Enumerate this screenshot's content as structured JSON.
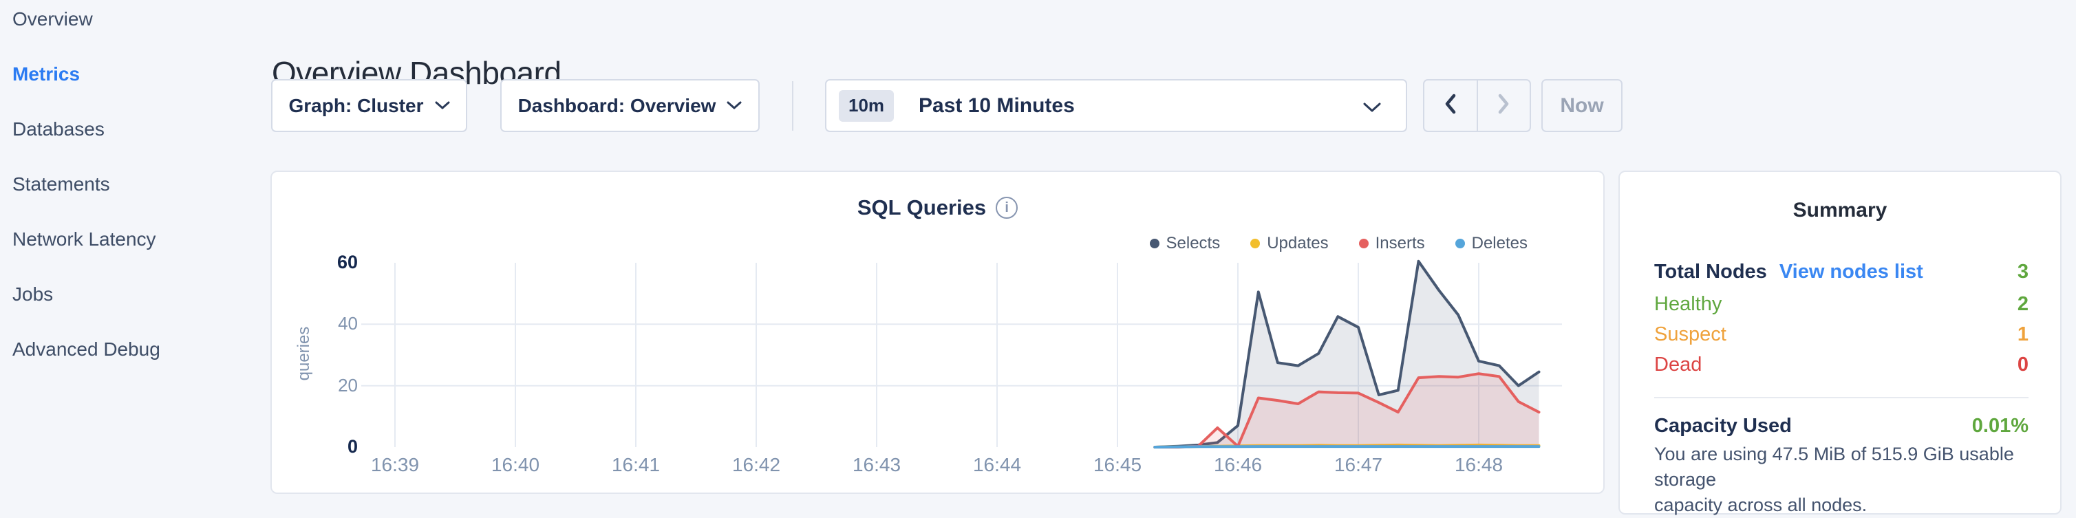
{
  "sidebar": {
    "items": [
      {
        "label": "Overview",
        "active": false
      },
      {
        "label": "Metrics",
        "active": true
      },
      {
        "label": "Databases",
        "active": false
      },
      {
        "label": "Statements",
        "active": false
      },
      {
        "label": "Network Latency",
        "active": false
      },
      {
        "label": "Jobs",
        "active": false
      },
      {
        "label": "Advanced Debug",
        "active": false
      }
    ]
  },
  "header": {
    "title": "Overview Dashboard"
  },
  "controls": {
    "graph_dropdown_label": "Graph: Cluster",
    "dashboard_dropdown_label": "Dashboard: Overview",
    "time_picker": {
      "badge": "10m",
      "label": "Past 10 Minutes"
    },
    "now_button_label": "Now"
  },
  "chart_panel": {
    "info_glyph": "i"
  },
  "chart_data": {
    "type": "line",
    "title": "SQL Queries",
    "ylabel": "queries",
    "xlabel": "",
    "x_unit": "minutes after 16:39",
    "x_tick_labels": [
      "16:39",
      "16:40",
      "16:41",
      "16:42",
      "16:43",
      "16:44",
      "16:45",
      "16:46",
      "16:47",
      "16:48"
    ],
    "ylim": [
      0,
      60
    ],
    "y_ticks": [
      0,
      20,
      40,
      60
    ],
    "grid": true,
    "legend_position": "top-right",
    "series": [
      {
        "name": "Selects",
        "color": "#475872",
        "fill": "rgba(71,88,114,0.13)",
        "points": [
          [
            6.31,
            0
          ],
          [
            6.5,
            0.3
          ],
          [
            6.67,
            0.7
          ],
          [
            6.83,
            1.5
          ],
          [
            7,
            7
          ],
          [
            7.17,
            50.5
          ],
          [
            7.33,
            27.5
          ],
          [
            7.5,
            26.5
          ],
          [
            7.67,
            30.5
          ],
          [
            7.83,
            42.5
          ],
          [
            8,
            39
          ],
          [
            8.17,
            17
          ],
          [
            8.33,
            18.5
          ],
          [
            8.5,
            60.5
          ],
          [
            8.67,
            51
          ],
          [
            8.83,
            43
          ],
          [
            9,
            28
          ],
          [
            9.17,
            26.5
          ],
          [
            9.33,
            20
          ],
          [
            9.5,
            24.5
          ]
        ]
      },
      {
        "name": "Updates",
        "color": "#f2be2c",
        "fill": "rgba(242,190,44,0.18)",
        "points": [
          [
            6.31,
            0
          ],
          [
            6.5,
            0.1
          ],
          [
            6.67,
            0.2
          ],
          [
            6.83,
            0.3
          ],
          [
            7,
            0.4
          ],
          [
            7.17,
            0.5
          ],
          [
            7.33,
            0.5
          ],
          [
            7.5,
            0.5
          ],
          [
            7.67,
            0.6
          ],
          [
            7.83,
            0.5
          ],
          [
            8,
            0.5
          ],
          [
            8.17,
            0.6
          ],
          [
            8.33,
            0.7
          ],
          [
            8.5,
            0.6
          ],
          [
            8.67,
            0.5
          ],
          [
            8.83,
            0.6
          ],
          [
            9,
            0.7
          ],
          [
            9.17,
            0.6
          ],
          [
            9.33,
            0.5
          ],
          [
            9.5,
            0.5
          ]
        ]
      },
      {
        "name": "Inserts",
        "color": "#e5605f",
        "fill": "rgba(229,96,95,0.13)",
        "points": [
          [
            6.31,
            0
          ],
          [
            6.5,
            0
          ],
          [
            6.67,
            0.3
          ],
          [
            6.83,
            6.3
          ],
          [
            7,
            0.3
          ],
          [
            7.17,
            16
          ],
          [
            7.33,
            15.2
          ],
          [
            7.5,
            14.1
          ],
          [
            7.67,
            18
          ],
          [
            7.83,
            17.7
          ],
          [
            8,
            17.6
          ],
          [
            8.17,
            14.5
          ],
          [
            8.33,
            11.4
          ],
          [
            8.5,
            22.6
          ],
          [
            8.67,
            23
          ],
          [
            8.83,
            22.8
          ],
          [
            9,
            23.9
          ],
          [
            9.17,
            23
          ],
          [
            9.33,
            14.8
          ],
          [
            9.5,
            11.4
          ]
        ]
      },
      {
        "name": "Deletes",
        "color": "#55a5da",
        "fill": "rgba(85,165,218,0.15)",
        "points": [
          [
            6.31,
            0
          ],
          [
            6.5,
            0.1
          ],
          [
            6.67,
            0.15
          ],
          [
            6.83,
            0.15
          ],
          [
            7,
            0.15
          ],
          [
            7.17,
            0.2
          ],
          [
            7.33,
            0.2
          ],
          [
            7.5,
            0.2
          ],
          [
            7.67,
            0.2
          ],
          [
            7.83,
            0.2
          ],
          [
            8,
            0.2
          ],
          [
            8.17,
            0.2
          ],
          [
            8.33,
            0.2
          ],
          [
            8.5,
            0.2
          ],
          [
            8.67,
            0.2
          ],
          [
            8.83,
            0.2
          ],
          [
            9,
            0.2
          ],
          [
            9.17,
            0.2
          ],
          [
            9.33,
            0.2
          ],
          [
            9.5,
            0.2
          ]
        ]
      }
    ]
  },
  "summary": {
    "title": "Summary",
    "total_nodes_label": "Total Nodes",
    "view_nodes_link": "View nodes list",
    "total_nodes_value": "3",
    "statuses": [
      {
        "label": "Healthy",
        "value": "2"
      },
      {
        "label": "Suspect",
        "value": "1"
      },
      {
        "label": "Dead",
        "value": "0"
      }
    ],
    "capacity_label": "Capacity Used",
    "capacity_value": "0.01%",
    "capacity_note_line1": "You are using 47.5 MiB of 515.9 GiB usable storage",
    "capacity_note_line2": "capacity across all nodes."
  },
  "colors": {
    "page_bg": "#f4f6fa",
    "panel_bg": "#ffffff",
    "panel_border": "#e2e6ee",
    "control_border": "#d5dbe7",
    "active_nav": "#2b7bf2",
    "nav_text": "#3e4d66",
    "title_text": "#242c3a",
    "dark_navy": "#1f2f50",
    "muted": "#8795b0",
    "link_blue": "#3a87f2",
    "green": "#5fa73e",
    "orange": "#efa23c",
    "red": "#dc4443",
    "badge_bg": "#e1e5ee",
    "disabled": "#9aa4b5",
    "tick_text": "#8093ae",
    "axis_bold": "#15284e",
    "grid": "#e5eaf2"
  }
}
